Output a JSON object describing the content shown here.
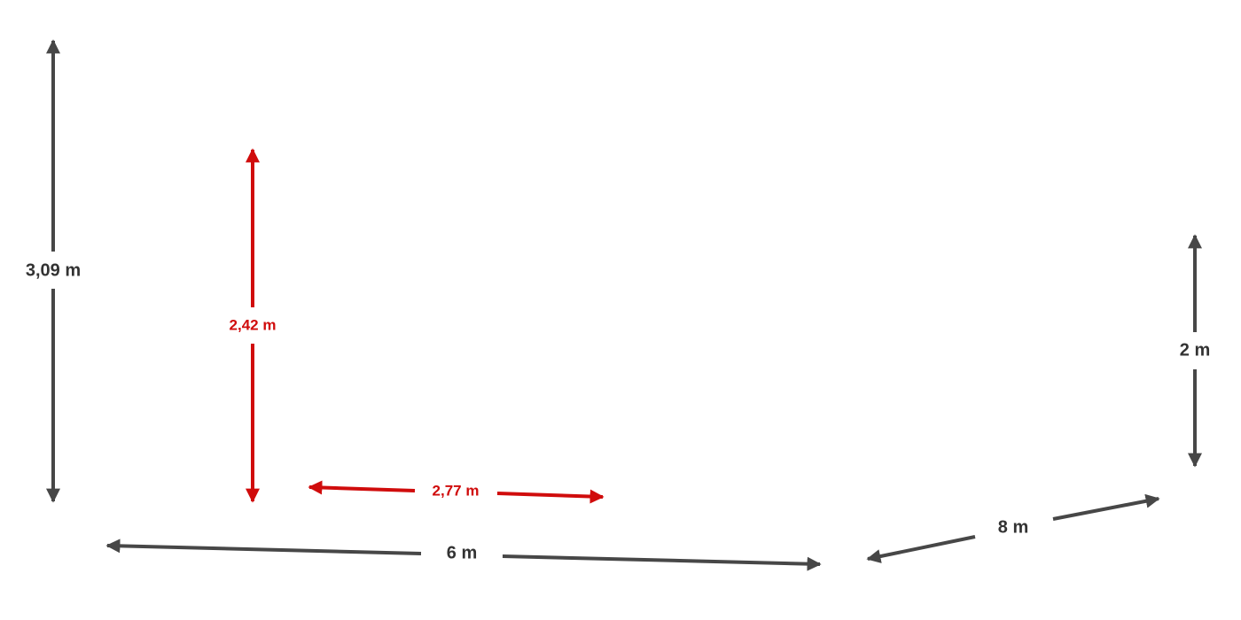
{
  "dimensions": [
    {
      "label": "3,09 m"
    },
    {
      "label": "2,42 m"
    },
    {
      "label": "2,77 m"
    },
    {
      "label": "6 m"
    },
    {
      "label": "8 m"
    },
    {
      "label": "2 m"
    }
  ]
}
